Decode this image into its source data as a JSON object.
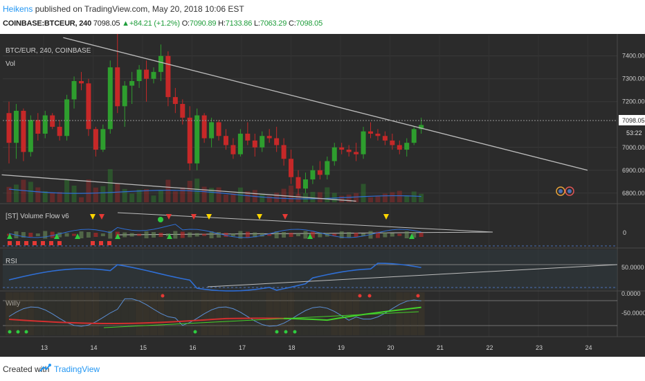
{
  "header": {
    "author": "Heikens",
    "published": " published on TradingView.com, May 20, 2018 10:06 EST",
    "symbol": "COINBASE:BTCEUR, 240",
    "last": "7098.05",
    "change": "+84.21 (+1.2%)",
    "o_label": "O:",
    "o_value": "7090.89",
    "h_label": "H:",
    "h_value": "7133.86",
    "l_label": "L:",
    "l_value": "7063.29",
    "c_label": "C:",
    "c_value": "7098.05"
  },
  "main_pane": {
    "title": "BTC/EUR, 240, COINBASE",
    "vol_label": "Vol",
    "last_price_tag": "7098.05",
    "countdown_tag": "53:22"
  },
  "panes": {
    "vflow_label": "[ST] Volume Flow v6",
    "vflow_zero": "0",
    "rsi_label": "RSI",
    "rsi_level": "50.0000",
    "willy_label": "Willy",
    "willy_top": "0.0000",
    "willy_mid": "-50.0000"
  },
  "footer": {
    "created": "Created with",
    "brand": "TradingView"
  },
  "colors": {
    "bull": "#2e9e2e",
    "bear": "#c62828",
    "background": "#2b2b2b",
    "line_blue": "#2f6fd6",
    "trend_line": "#bdbdbd"
  },
  "chart_data": {
    "type": "candlestick",
    "price_axis": {
      "ticks": [
        "7400.00",
        "7300.00",
        "7200.00",
        "7000.00",
        "6900.00",
        "6800.00"
      ],
      "range": [
        6760,
        7490
      ]
    },
    "time_axis": {
      "ticks": [
        "13",
        "14",
        "15",
        "16",
        "17",
        "18",
        "19",
        "20",
        "21",
        "22",
        "23",
        "24"
      ]
    },
    "candles": [
      [
        7150,
        7200,
        6930,
        7020
      ],
      [
        7020,
        7190,
        6950,
        7160
      ],
      [
        7160,
        7170,
        6940,
        6980
      ],
      [
        6980,
        7140,
        6960,
        7120
      ],
      [
        7120,
        7150,
        7030,
        7060
      ],
      [
        7060,
        7160,
        7040,
        7140
      ],
      [
        7140,
        7150,
        7080,
        7090
      ],
      [
        7090,
        7120,
        7030,
        7050
      ],
      [
        7050,
        7230,
        7030,
        7210
      ],
      [
        7210,
        7310,
        7170,
        7290
      ],
      [
        7290,
        7330,
        7250,
        7280
      ],
      [
        7280,
        7300,
        7050,
        7080
      ],
      [
        7080,
        7090,
        6960,
        6990
      ],
      [
        6990,
        7100,
        6980,
        7080
      ],
      [
        7080,
        7380,
        7060,
        7350
      ],
      [
        7350,
        7500,
        7150,
        7180
      ],
      [
        7180,
        7290,
        7090,
        7270
      ],
      [
        7270,
        7330,
        7190,
        7290
      ],
      [
        7290,
        7360,
        7260,
        7340
      ],
      [
        7340,
        7380,
        7200,
        7300
      ],
      [
        7300,
        7350,
        7280,
        7330
      ],
      [
        7330,
        7450,
        7290,
        7400
      ],
      [
        7400,
        7420,
        7180,
        7220
      ],
      [
        7220,
        7260,
        7150,
        7190
      ],
      [
        7190,
        7210,
        7100,
        7130
      ],
      [
        7130,
        7180,
        6900,
        6930
      ],
      [
        6930,
        7170,
        6900,
        7140
      ],
      [
        7140,
        7150,
        7020,
        7040
      ],
      [
        7040,
        7130,
        7000,
        7110
      ],
      [
        7110,
        7120,
        7030,
        7050
      ],
      [
        7050,
        7080,
        6990,
        7010
      ],
      [
        7010,
        7040,
        6950,
        6970
      ],
      [
        6970,
        7080,
        6960,
        7060
      ],
      [
        7060,
        7110,
        7010,
        7030
      ],
      [
        7030,
        7060,
        6960,
        7000
      ],
      [
        7000,
        7070,
        6980,
        7050
      ],
      [
        7050,
        7080,
        7020,
        7040
      ],
      [
        7040,
        7090,
        6980,
        7010
      ],
      [
        7010,
        7040,
        6920,
        6950
      ],
      [
        6950,
        6990,
        6840,
        6870
      ],
      [
        6870,
        6900,
        6790,
        6820
      ],
      [
        6820,
        6890,
        6800,
        6860
      ],
      [
        6860,
        6920,
        6840,
        6900
      ],
      [
        6900,
        6940,
        6860,
        6880
      ],
      [
        6880,
        6960,
        6860,
        6940
      ],
      [
        6940,
        7020,
        6920,
        7000
      ],
      [
        7000,
        7020,
        6970,
        6990
      ],
      [
        6990,
        7010,
        6960,
        6980
      ],
      [
        6980,
        7020,
        6940,
        6970
      ],
      [
        6970,
        7090,
        6950,
        7070
      ],
      [
        7070,
        7110,
        7040,
        7060
      ],
      [
        7060,
        7080,
        7030,
        7050
      ],
      [
        7050,
        7070,
        7010,
        7030
      ],
      [
        7030,
        7060,
        6990,
        7010
      ],
      [
        7010,
        7030,
        6970,
        6990
      ],
      [
        6990,
        7040,
        6960,
        7020
      ],
      [
        7020,
        7090,
        7010,
        7080
      ],
      [
        7080,
        7130,
        7060,
        7098
      ]
    ],
    "trend_lines": [
      {
        "from": [
          7.5,
          7480
        ],
        "to": [
          80,
          6900
        ]
      },
      {
        "from": [
          -1,
          6880
        ],
        "to": [
          48,
          6765
        ]
      }
    ]
  }
}
